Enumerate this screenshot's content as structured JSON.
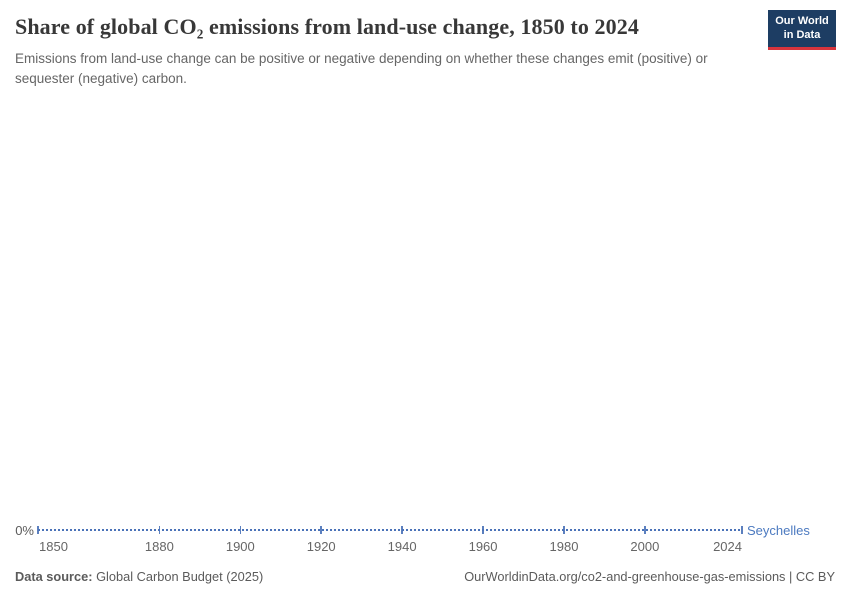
{
  "header": {
    "title": "Share of global CO₂ emissions from land-use change, 1850 to 2024",
    "subtitle": "Emissions from land-use change can be positive or negative depending on whether these changes emit (positive) or sequester (negative) carbon.",
    "logo": {
      "line1": "Our World",
      "line2": "in Data"
    }
  },
  "chart_data": {
    "type": "line",
    "title": "Share of global CO₂ emissions from land-use change, 1850 to 2024",
    "entity_label": "Seychelles",
    "series": [
      {
        "name": "Seychelles",
        "constant_value": 0,
        "note": "flat line at 0% for every year shown"
      }
    ],
    "unit": "%",
    "x_range": [
      1850,
      2024
    ],
    "x_ticks": [
      1850,
      1880,
      1900,
      1920,
      1940,
      1960,
      1980,
      2000,
      2024
    ],
    "y_axis_label": "0%",
    "ylim_visible_tick": 0,
    "grid": false,
    "legend_position": "right-of-line-end",
    "line_color": "#4a72b8",
    "label_color": "#4c7ac0"
  },
  "footer": {
    "source_label": "Data source:",
    "source_value": " Global Carbon Budget (2025)",
    "attribution": "OurWorldinData.org/co2-and-greenhouse-gas-emissions | CC BY"
  },
  "colors": {
    "title": "#383838",
    "subtitle": "#666666",
    "tick": "#666666",
    "logo_navy": "#1d3d63",
    "logo_red": "#d8343c"
  }
}
